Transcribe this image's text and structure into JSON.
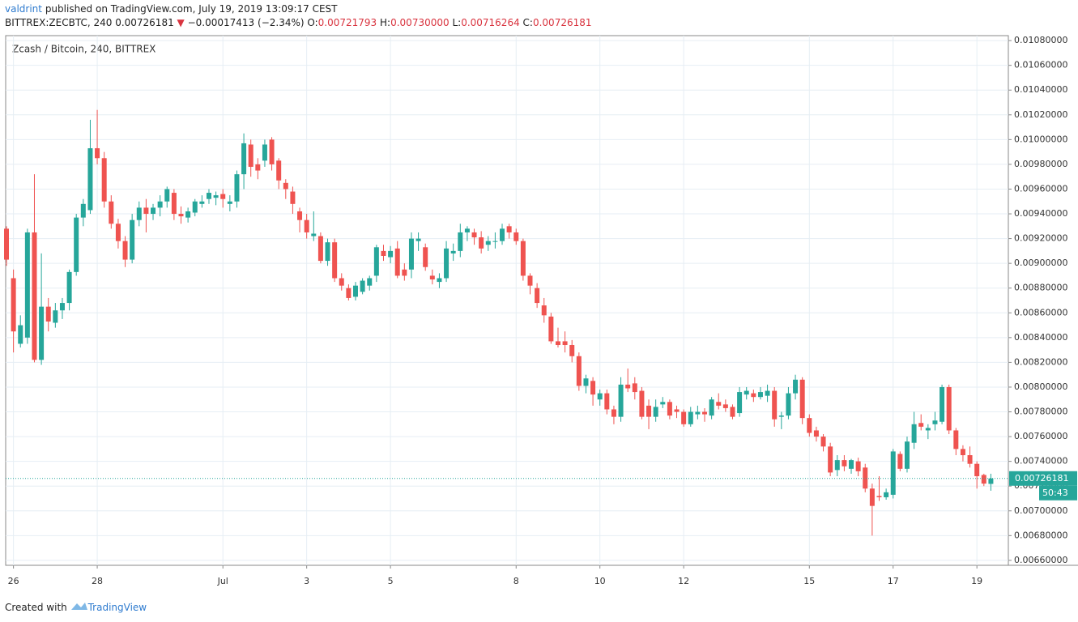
{
  "header": {
    "author": "valdrint",
    "published": "published on TradingView.com, July 19, 2019 13:09:17 CEST",
    "symbol": "BITTREX:ZECBTC, 240",
    "last": "0.00726181",
    "arrow": "▼",
    "change": "−0.00017413 (−2.34%)",
    "o_label": "O:",
    "o_value": "0.00721793",
    "h_label": "H:",
    "h_value": "0.00730000",
    "l_label": "L:",
    "l_value": "0.00716264",
    "c_label": "C:",
    "c_value": "0.00726181"
  },
  "chart_data": {
    "type": "candlestick",
    "title": "Zcash / Bitcoin, 240, BITTREX",
    "up_color": "#26a69a",
    "down_color": "#ef5350",
    "grid": true,
    "categories": [
      null,
      "26",
      null,
      null,
      null,
      null,
      null,
      null,
      null,
      null,
      null,
      null,
      null,
      "28",
      null,
      null,
      null,
      null,
      null,
      null,
      null,
      null,
      null,
      null,
      null,
      null,
      null,
      null,
      null,
      null,
      null,
      "Jul",
      null,
      null,
      null,
      null,
      null,
      null,
      null,
      null,
      null,
      null,
      null,
      "3",
      null,
      null,
      null,
      null,
      null,
      null,
      null,
      null,
      null,
      null,
      null,
      "5",
      null,
      null,
      null,
      null,
      null,
      null,
      null,
      null,
      null,
      null,
      null,
      null,
      null,
      null,
      null,
      null,
      null,
      "8",
      null,
      null,
      null,
      null,
      null,
      null,
      null,
      null,
      null,
      null,
      null,
      "10",
      null,
      null,
      null,
      null,
      null,
      null,
      null,
      null,
      null,
      null,
      null,
      "12",
      null,
      null,
      null,
      null,
      null,
      null,
      null,
      null,
      null,
      null,
      null,
      null,
      null,
      null,
      null,
      null,
      null,
      "15",
      null,
      null,
      null,
      null,
      null,
      null,
      null,
      null,
      null,
      null,
      null,
      "17",
      null,
      null,
      null,
      null,
      null,
      null,
      null,
      null,
      null,
      null,
      null,
      "19",
      null,
      null
    ],
    "open": [
      0.00928,
      0.00888,
      0.00835,
      0.0084,
      0.00925,
      0.00822,
      0.00865,
      0.00852,
      0.00862,
      0.00868,
      0.00893,
      0.00937,
      0.00943,
      0.00993,
      0.00985,
      0.0095,
      0.00932,
      0.00918,
      0.00903,
      0.00935,
      0.00945,
      0.0094,
      0.00945,
      0.0095,
      0.00957,
      0.0094,
      0.00937,
      0.00941,
      0.00948,
      0.00952,
      0.00953,
      0.00956,
      0.00948,
      0.0095,
      0.00972,
      0.00996,
      0.0098,
      0.00983,
      0.01,
      0.00983,
      0.00965,
      0.00958,
      0.00942,
      0.00935,
      0.00922,
      0.00922,
      0.00902,
      0.00917,
      0.00888,
      0.0088,
      0.00873,
      0.00877,
      0.00882,
      0.0089,
      0.0091,
      0.00905,
      0.00912,
      0.00895,
      0.00895,
      0.00918,
      0.00913,
      0.0089,
      0.00885,
      0.00888,
      0.00908,
      0.0091,
      0.00925,
      0.00925,
      0.00921,
      0.00915,
      0.00918,
      0.00918,
      0.0093,
      0.00925,
      0.00918,
      0.0089,
      0.0088,
      0.00866,
      0.00857,
      0.00837,
      0.00837,
      0.00834,
      0.00825,
      0.00801,
      0.00805,
      0.0079,
      0.00795,
      0.00782,
      0.00776,
      0.00802,
      0.00803,
      0.00797,
      0.00785,
      0.00776,
      0.00786,
      0.00788,
      0.00782,
      0.0078,
      0.0077,
      0.00778,
      0.0078,
      0.00777,
      0.00788,
      0.00786,
      0.00784,
      0.00779,
      0.00794,
      0.00795,
      0.00792,
      0.00793,
      0.00797,
      0.00776,
      0.00777,
      0.00795,
      0.00806,
      0.00775,
      0.00765,
      0.0076,
      0.00752,
      0.00733,
      0.00741,
      0.00734,
      0.0074,
      0.00735,
      0.00718,
      0.00712,
      0.00711,
      0.00713,
      0.00746,
      0.00734,
      0.00755,
      0.00771,
      0.00765,
      0.0077,
      0.00772,
      0.008,
      0.00765,
      0.0075,
      0.00745,
      0.00738,
      0.00729,
      0.00721793
    ],
    "high": [
      0.0093,
      0.00895,
      0.00858,
      0.00928,
      0.00972,
      0.00908,
      0.00872,
      0.00868,
      0.00872,
      0.00895,
      0.0094,
      0.00952,
      0.01016,
      0.01024,
      0.0099,
      0.00955,
      0.00936,
      0.00922,
      0.0094,
      0.0095,
      0.00952,
      0.00948,
      0.00955,
      0.00962,
      0.0096,
      0.00946,
      0.00945,
      0.00952,
      0.00955,
      0.0096,
      0.00958,
      0.0096,
      0.00955,
      0.00975,
      0.01005,
      0.01,
      0.00985,
      0.01,
      0.01002,
      0.00985,
      0.00968,
      0.00962,
      0.00945,
      0.0094,
      0.00942,
      0.00925,
      0.0092,
      0.0092,
      0.00892,
      0.00883,
      0.00885,
      0.00888,
      0.0089,
      0.00915,
      0.00915,
      0.00914,
      0.00918,
      0.009,
      0.00925,
      0.00925,
      0.00916,
      0.00895,
      0.00892,
      0.00918,
      0.00916,
      0.00932,
      0.0093,
      0.00928,
      0.00926,
      0.00922,
      0.00925,
      0.00932,
      0.00932,
      0.00928,
      0.0092,
      0.00892,
      0.00884,
      0.00872,
      0.0086,
      0.00848,
      0.00845,
      0.00838,
      0.00828,
      0.0081,
      0.00808,
      0.00798,
      0.00798,
      0.00785,
      0.00808,
      0.00815,
      0.00808,
      0.008,
      0.0079,
      0.0079,
      0.00792,
      0.0079,
      0.00785,
      0.00782,
      0.00784,
      0.00785,
      0.00783,
      0.00792,
      0.00795,
      0.0079,
      0.00786,
      0.008,
      0.008,
      0.00798,
      0.008,
      0.00802,
      0.008,
      0.0078,
      0.008,
      0.0081,
      0.00808,
      0.00778,
      0.00768,
      0.00762,
      0.00755,
      0.00745,
      0.00745,
      0.00742,
      0.00743,
      0.00738,
      0.00722,
      0.00728,
      0.00718,
      0.0075,
      0.00748,
      0.0076,
      0.0078,
      0.00778,
      0.0077,
      0.0078,
      0.00802,
      0.00802,
      0.00767,
      0.00753,
      0.00752,
      0.0074,
      0.0073,
      0.0073
    ],
    "low": [
      0.00898,
      0.00828,
      0.00832,
      0.00835,
      0.0082,
      0.00818,
      0.00845,
      0.00848,
      0.00855,
      0.00862,
      0.0089,
      0.0093,
      0.0094,
      0.0098,
      0.00945,
      0.00928,
      0.00912,
      0.00897,
      0.009,
      0.0093,
      0.00925,
      0.00935,
      0.00938,
      0.00945,
      0.00935,
      0.00932,
      0.00933,
      0.00938,
      0.00945,
      0.00948,
      0.00947,
      0.00945,
      0.00942,
      0.00945,
      0.0096,
      0.0097,
      0.00968,
      0.00978,
      0.00975,
      0.0096,
      0.00952,
      0.0094,
      0.00925,
      0.0092,
      0.00918,
      0.009,
      0.00898,
      0.00885,
      0.00878,
      0.0087,
      0.0087,
      0.00875,
      0.00878,
      0.00885,
      0.00902,
      0.009,
      0.00888,
      0.00886,
      0.00888,
      0.0091,
      0.00894,
      0.00883,
      0.0088,
      0.00885,
      0.00902,
      0.00905,
      0.00918,
      0.00915,
      0.00908,
      0.0091,
      0.00912,
      0.00915,
      0.0092,
      0.00915,
      0.00886,
      0.00875,
      0.00864,
      0.00852,
      0.00835,
      0.00832,
      0.00828,
      0.0082,
      0.00797,
      0.00795,
      0.00785,
      0.00785,
      0.00778,
      0.0077,
      0.00772,
      0.00796,
      0.0079,
      0.00774,
      0.00766,
      0.00772,
      0.00783,
      0.00774,
      0.00775,
      0.00768,
      0.00768,
      0.00774,
      0.00772,
      0.00774,
      0.00782,
      0.0078,
      0.00774,
      0.00776,
      0.0079,
      0.00788,
      0.0079,
      0.00788,
      0.00768,
      0.00766,
      0.00774,
      0.0079,
      0.0077,
      0.0076,
      0.00756,
      0.00748,
      0.00728,
      0.00728,
      0.00732,
      0.0073,
      0.00728,
      0.00715,
      0.0068,
      0.00708,
      0.00709,
      0.0071,
      0.00732,
      0.00731,
      0.0075,
      0.00765,
      0.00758,
      0.00765,
      0.0077,
      0.00762,
      0.00745,
      0.0074,
      0.00735,
      0.00718,
      0.0072,
      0.00716264
    ],
    "close": [
      0.00903,
      0.00845,
      0.0085,
      0.00925,
      0.00822,
      0.00865,
      0.00853,
      0.00862,
      0.00868,
      0.00893,
      0.00937,
      0.00948,
      0.00993,
      0.00985,
      0.0095,
      0.00932,
      0.00918,
      0.00903,
      0.00935,
      0.00945,
      0.0094,
      0.00945,
      0.0095,
      0.0096,
      0.0094,
      0.00938,
      0.00942,
      0.0095,
      0.0095,
      0.00957,
      0.00955,
      0.00952,
      0.0095,
      0.00972,
      0.00997,
      0.00978,
      0.00975,
      0.00996,
      0.0098,
      0.00967,
      0.0096,
      0.00948,
      0.00935,
      0.00925,
      0.00924,
      0.00902,
      0.00917,
      0.00888,
      0.00882,
      0.00872,
      0.00882,
      0.00886,
      0.00888,
      0.00913,
      0.00906,
      0.0091,
      0.0089,
      0.0089,
      0.0092,
      0.0092,
      0.00897,
      0.00887,
      0.00888,
      0.00912,
      0.0091,
      0.00925,
      0.00928,
      0.00921,
      0.00912,
      0.00918,
      0.00918,
      0.00928,
      0.00925,
      0.00918,
      0.0089,
      0.00882,
      0.00868,
      0.00858,
      0.00837,
      0.00834,
      0.00834,
      0.00825,
      0.00801,
      0.00807,
      0.00794,
      0.00795,
      0.00782,
      0.00776,
      0.00802,
      0.00799,
      0.00796,
      0.00776,
      0.00776,
      0.00784,
      0.00788,
      0.00777,
      0.0078,
      0.0077,
      0.0078,
      0.0078,
      0.00778,
      0.0079,
      0.00785,
      0.00783,
      0.00776,
      0.00796,
      0.00797,
      0.00792,
      0.00796,
      0.00797,
      0.00774,
      0.00777,
      0.00795,
      0.00806,
      0.00775,
      0.00763,
      0.0076,
      0.00752,
      0.00731,
      0.00741,
      0.00736,
      0.00741,
      0.00732,
      0.00718,
      0.00704,
      0.00711,
      0.00715,
      0.00748,
      0.00734,
      0.00756,
      0.0077,
      0.00768,
      0.00767,
      0.00773,
      0.008,
      0.00765,
      0.0075,
      0.00745,
      0.00738,
      0.00728,
      0.00722,
      0.00726181
    ],
    "ylim": [
      0.00656,
      0.01084
    ],
    "yticks": [
      {
        "value": 0.0066,
        "label": "0.00660000"
      },
      {
        "value": 0.0068,
        "label": "0.00680000"
      },
      {
        "value": 0.007,
        "label": "0.00700000"
      },
      {
        "value": 0.0072,
        "label": "0.00720000"
      },
      {
        "value": 0.0074,
        "label": "0.00740000"
      },
      {
        "value": 0.0076,
        "label": "0.00760000"
      },
      {
        "value": 0.0078,
        "label": "0.00780000"
      },
      {
        "value": 0.008,
        "label": "0.00800000"
      },
      {
        "value": 0.0082,
        "label": "0.00820000"
      },
      {
        "value": 0.0084,
        "label": "0.00840000"
      },
      {
        "value": 0.0086,
        "label": "0.00860000"
      },
      {
        "value": 0.0088,
        "label": "0.00880000"
      },
      {
        "value": 0.009,
        "label": "0.00900000"
      },
      {
        "value": 0.0092,
        "label": "0.00920000"
      },
      {
        "value": 0.0094,
        "label": "0.00940000"
      },
      {
        "value": 0.0096,
        "label": "0.00960000"
      },
      {
        "value": 0.0098,
        "label": "0.00980000"
      },
      {
        "value": 0.01,
        "label": "0.01000000"
      },
      {
        "value": 0.0102,
        "label": "0.01020000"
      },
      {
        "value": 0.0104,
        "label": "0.01040000"
      },
      {
        "value": 0.0106,
        "label": "0.01060000"
      },
      {
        "value": 0.0108,
        "label": "0.01080000"
      }
    ],
    "price_tag": {
      "price": "0.00726181",
      "countdown": "50:43"
    }
  },
  "footer": {
    "created": "Created with",
    "brand": "TradingView"
  }
}
